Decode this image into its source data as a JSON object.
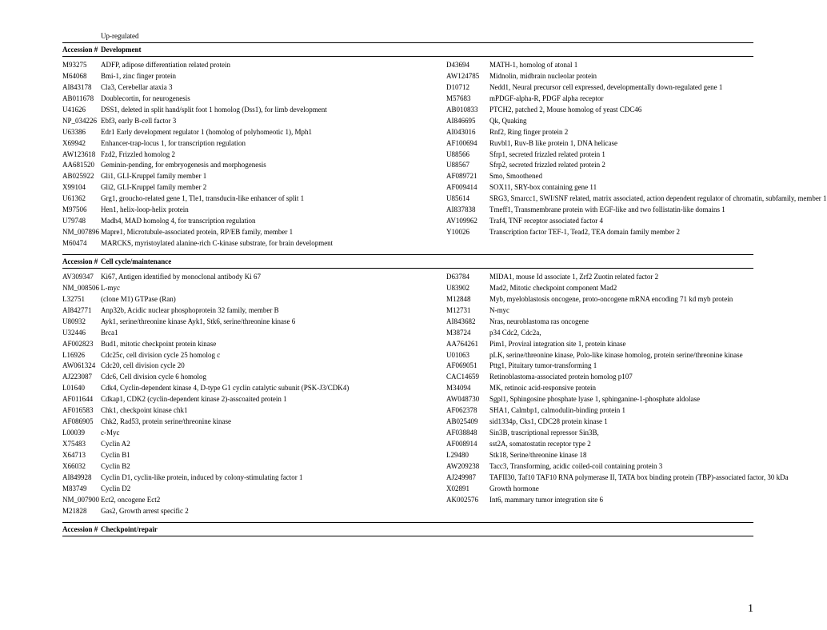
{
  "page": {
    "upRegulated": "Up-regulated",
    "accessionHeader": "Accession #",
    "pageNumber": "1"
  },
  "sections": [
    {
      "category": "Development",
      "rows": [
        {
          "a1": "M93275",
          "d1": "ADFP, adipose differentiation related protein",
          "a2": "D43694",
          "d2": "MATH-1, homolog of atonal 1"
        },
        {
          "a1": "M64068",
          "d1": "Bmi-1, zinc finger protein",
          "a2": "AW124785",
          "d2": "Midnolin, midbrain nucleolar protein"
        },
        {
          "a1": "AI843178",
          "d1": "Cla3, Cerebellar ataxia 3",
          "a2": "D10712",
          "d2": "Nedd1, Neural precursor cell expressed, developmentally down-regulated gene 1"
        },
        {
          "a1": "AB011678",
          "d1": "Doublecortin, for neurogenesis",
          "a2": "M57683",
          "d2": "mPDGF-alpha-R, PDGF alpha receptor"
        },
        {
          "a1": "U41626",
          "d1": "DSS1, deleted in split hand/split foot 1 homolog (Dss1), for limb development",
          "a2": "AB010833",
          "d2": "PTCH2, patched 2, Mouse homolog of yeast CDC46"
        },
        {
          "a1": "NP_034226",
          "d1": "Ebf3, early B-cell factor 3",
          "a2": "AI846695",
          "d2": "Qk, Quaking"
        },
        {
          "a1": "U63386",
          "d1": "Edr1 Early development regulator 1 (homolog of polyhomeotic 1), Mph1",
          "a2": "AI043016",
          "d2": "Rnf2, Ring finger protein 2"
        },
        {
          "a1": "X69942",
          "d1": "Enhancer-trap-locus 1, for transcription regulation",
          "a2": "AF100694",
          "d2": "Ruvbl1, Ruv-B like protein 1, DNA helicase"
        },
        {
          "a1": "AW123618",
          "d1": "Fzd2, Frizzled homolog 2",
          "a2": "U88566",
          "d2": "Sfrp1, secreted frizzled related protein 1"
        },
        {
          "a1": "AA681520",
          "d1": "Geminin-pending, for embryogenesis and morphogenesis",
          "a2": "U88567",
          "d2": "Sfrp2, secreted frizzled related protein 2"
        },
        {
          "a1": "AB025922",
          "d1": "Gli1, GLI-Kruppel family member 1",
          "a2": "AF089721",
          "d2": "Smo, Smoothened"
        },
        {
          "a1": "X99104",
          "d1": "Gli2, GLI-Kruppel family member 2",
          "a2": "AF009414",
          "d2": "SOX11, SRY-box containing gene 11"
        },
        {
          "a1": "U61362",
          "d1": "Grg1, groucho-related gene 1, Tle1, transducin-like enhancer of split 1",
          "a2": "U85614",
          "d2": "SRG3, Smarcc1, SWI/SNF related, matrix associated, action dependent regulator of chromatin, subfamily, member 1"
        },
        {
          "a1": "M97506",
          "d1": "Hen1, helix-loop-helix protein",
          "a2": "AI837838",
          "d2": "Tmeff1, Transmembrane protein with EGF-like and two follistatin-like domains 1"
        },
        {
          "a1": "U79748",
          "d1": "Madh4, MAD homolog 4, for transcription regulation",
          "a2": "AV109962",
          "d2": "Traf4, TNF receptor associated factor 4"
        },
        {
          "a1": "NM_007896",
          "d1": "Mapre1, Microtubule-associated protein, RP/EB family, member 1",
          "a2": "Y10026",
          "d2": "Transcription factor TEF-1, Tead2, TEA domain family member 2"
        },
        {
          "a1": "M60474",
          "d1": "MARCKS, myristoylated alanine-rich C-kinase substrate, for brain development",
          "a2": "",
          "d2": ""
        }
      ]
    },
    {
      "category": "Cell cycle/maintenance",
      "rows": [
        {
          "a1": "AV309347",
          "d1": "Ki67, Antigen identified by monoclonal antibody Ki 67",
          "a2": "D63784",
          "d2": "MIDA1, mouse Id associate 1, Zrf2 Zuotin related factor 2"
        },
        {
          "a1": "NM_008506",
          "d1": "L-myc",
          "a2": "U83902",
          "d2": "Mad2, Mitotic checkpoint component Mad2"
        },
        {
          "a1": "L32751",
          "d1": "(clone M1) GTPase (Ran)",
          "a2": "M12848",
          "d2": "Myb, myeloblastosis oncogene, proto-oncogene mRNA encoding 71 kd myb protein"
        },
        {
          "a1": "AI842771",
          "d1": "Anp32b, Acidic nuclear phosphoprotein 32 family, member B",
          "a2": "M12731",
          "d2": "N-myc"
        },
        {
          "a1": "U80932",
          "d1": "Ayk1, serine/threonine kinase Ayk1, Stk6, serine/threonine kinase 6",
          "a2": "AI843682",
          "d2": "Nras, neuroblastoma ras oncogene"
        },
        {
          "a1": "U32446",
          "d1": "Brca1",
          "a2": "M38724",
          "d2": "p34 Cdc2, Cdc2a,"
        },
        {
          "a1": "AF002823",
          "d1": "Bud1, mitotic checkpoint protein kinase",
          "a2": "AA764261",
          "d2": "Pim1, Proviral integration site 1, protein kinase"
        },
        {
          "a1": "L16926",
          "d1": "Cdc25c, cell division cycle 25 homolog c",
          "a2": "U01063",
          "d2": "pLK, serine/threonine kinase, Polo-like kinase homolog, protein serine/threonine kinase"
        },
        {
          "a1": "AW061324",
          "d1": "Cdc20, cell division cycle 20",
          "a2": "AF069051",
          "d2": "Pttg1, Pituitary tumor-transforming 1"
        },
        {
          "a1": "AJ223087",
          "d1": "Cdc6, Cell division cycle 6 homolog",
          "a2": "CAC14659",
          "d2": "Retinoblastoma-associated protein homolog p107"
        },
        {
          "a1": "L01640",
          "d1": "Cdk4, Cyclin-dependent kinase 4, D-type G1 cyclin catalytic subunit (PSK-J3/CDK4)",
          "a2": "M34094",
          "d2": "MK, retinoic acid-responsive protein"
        },
        {
          "a1": "AF011644",
          "d1": "Cdkap1, CDK2 (cyclin-dependent kinase 2)-asscoaited protein 1",
          "a2": "AW048730",
          "d2": "Sgpl1, Sphingosine phosphate lyase 1, sphinganine-1-phosphate aldolase"
        },
        {
          "a1": "AF016583",
          "d1": "Chk1, checkpoint kinase chk1",
          "a2": "AF062378",
          "d2": "SHA1, Calmbp1, calmodulin-binding protein 1"
        },
        {
          "a1": "AF086905",
          "d1": "Chk2, Rad53, protein serine/threonine kinase",
          "a2": "AB025409",
          "d2": "sid1334p, Cks1, CDC28 protein kinase 1"
        },
        {
          "a1": "L00039",
          "d1": "c-Myc",
          "a2": "AF038848",
          "d2": "Sin3B, trascriptional repressor Sin3B,"
        },
        {
          "a1": "X75483",
          "d1": "Cyclin A2",
          "a2": "AF008914",
          "d2": "sst2A, somatostatin receptor type 2"
        },
        {
          "a1": "X64713",
          "d1": "Cyclin B1",
          "a2": "L29480",
          "d2": "Stk18, Serine/threonine kinase 18"
        },
        {
          "a1": "X66032",
          "d1": "Cyclin B2",
          "a2": "AW209238",
          "d2": "Tacc3, Transforming, acidic coiled-coil containing protein 3"
        },
        {
          "a1": "AI849928",
          "d1": "Cyclin D1, cyclin-like protein, induced by colony-stimulating factor 1",
          "a2": "AJ249987",
          "d2": "TAFII30, Taf10 TAF10 RNA polymerase II, TATA box binding protein (TBP)-associated factor, 30 kDa"
        },
        {
          "a1": "M83749",
          "d1": "Cyclin D2",
          "a2": "X02891",
          "d2": "Growth hormone"
        },
        {
          "a1": "NM_007900",
          "d1": "Ect2, oncogene Ect2",
          "a2": "AK002576",
          "d2": "Int6, mammary tumor integration site 6"
        },
        {
          "a1": "M21828",
          "d1": "Gas2, Growth arrest specific 2",
          "a2": "",
          "d2": ""
        }
      ]
    },
    {
      "category": "Checkpoint/repair",
      "rows": []
    }
  ]
}
